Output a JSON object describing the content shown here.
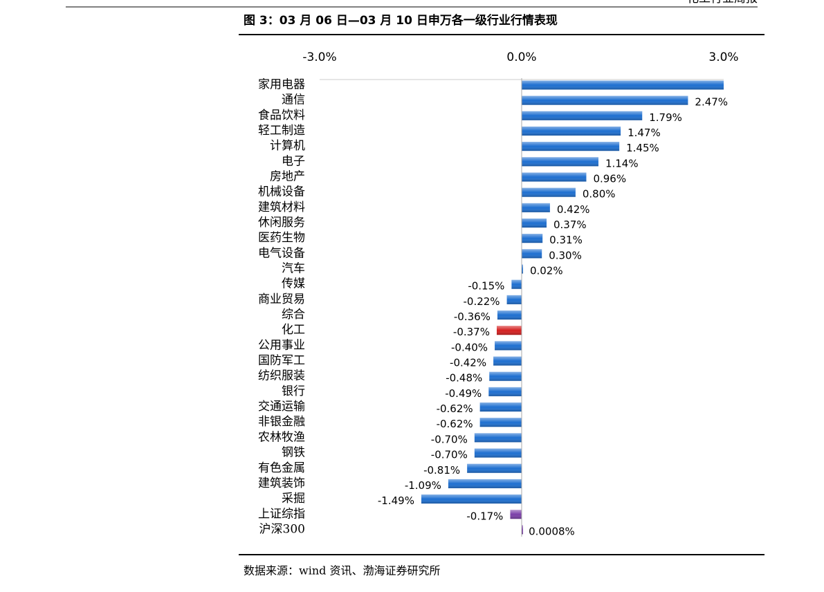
{
  "header": {
    "report": "化工行业周报"
  },
  "chart_data": {
    "type": "barh",
    "title": "图 3：03 月 06 日—03 月 10 日申万各一级行业行情表现",
    "categories": [
      "家用电器",
      "通信",
      "食品饮料",
      "轻工制造",
      "计算机",
      "电子",
      "房地产",
      "机械设备",
      "建筑材料",
      "休闲服务",
      "医药生物",
      "电气设备",
      "汽车",
      "传媒",
      "商业贸易",
      "综合",
      "化工",
      "公用事业",
      "国防军工",
      "纺织服装",
      "银行",
      "交通运输",
      "非银金融",
      "农林牧渔",
      "钢铁",
      "有色金属",
      "建筑装饰",
      "采掘",
      "上证综指",
      "沪深300"
    ],
    "values": [
      3.0,
      2.47,
      1.79,
      1.47,
      1.45,
      1.14,
      0.96,
      0.8,
      0.42,
      0.37,
      0.31,
      0.3,
      0.02,
      -0.15,
      -0.22,
      -0.36,
      -0.37,
      -0.4,
      -0.42,
      -0.48,
      -0.49,
      -0.62,
      -0.62,
      -0.7,
      -0.7,
      -0.81,
      -1.09,
      -1.49,
      -0.17,
      0.0008
    ],
    "value_labels": [
      null,
      "2.47%",
      "1.79%",
      "1.47%",
      "1.45%",
      "1.14%",
      "0.96%",
      "0.80%",
      "0.42%",
      "0.37%",
      "0.31%",
      "0.30%",
      "0.02%",
      "-0.15%",
      "-0.22%",
      "-0.36%",
      "-0.37%",
      "-0.40%",
      "-0.42%",
      "-0.48%",
      "-0.49%",
      "-0.62%",
      "-0.62%",
      "-0.70%",
      "-0.70%",
      "-0.81%",
      "-1.09%",
      "-1.49%",
      "-0.17%",
      "0.0008%"
    ],
    "colors": [
      "#1e6fd0",
      "#1e6fd0",
      "#1e6fd0",
      "#1e6fd0",
      "#1e6fd0",
      "#1e6fd0",
      "#1e6fd0",
      "#1e6fd0",
      "#1e6fd0",
      "#1e6fd0",
      "#1e6fd0",
      "#1e6fd0",
      "#1e6fd0",
      "#1e6fd0",
      "#1e6fd0",
      "#1e6fd0",
      "#d42020",
      "#1e6fd0",
      "#1e6fd0",
      "#1e6fd0",
      "#1e6fd0",
      "#1e6fd0",
      "#1e6fd0",
      "#1e6fd0",
      "#1e6fd0",
      "#1e6fd0",
      "#1e6fd0",
      "#1e6fd0",
      "#7b3fa8",
      "#7b3fa8"
    ],
    "xlim": [
      -3,
      3
    ],
    "xticks": [
      {
        "value": -3,
        "label": "-3.0%"
      },
      {
        "value": 0,
        "label": "0.0%"
      },
      {
        "value": 3,
        "label": "3.0%"
      }
    ],
    "source": "数据来源：wind 资讯、渤海证券研究所"
  }
}
